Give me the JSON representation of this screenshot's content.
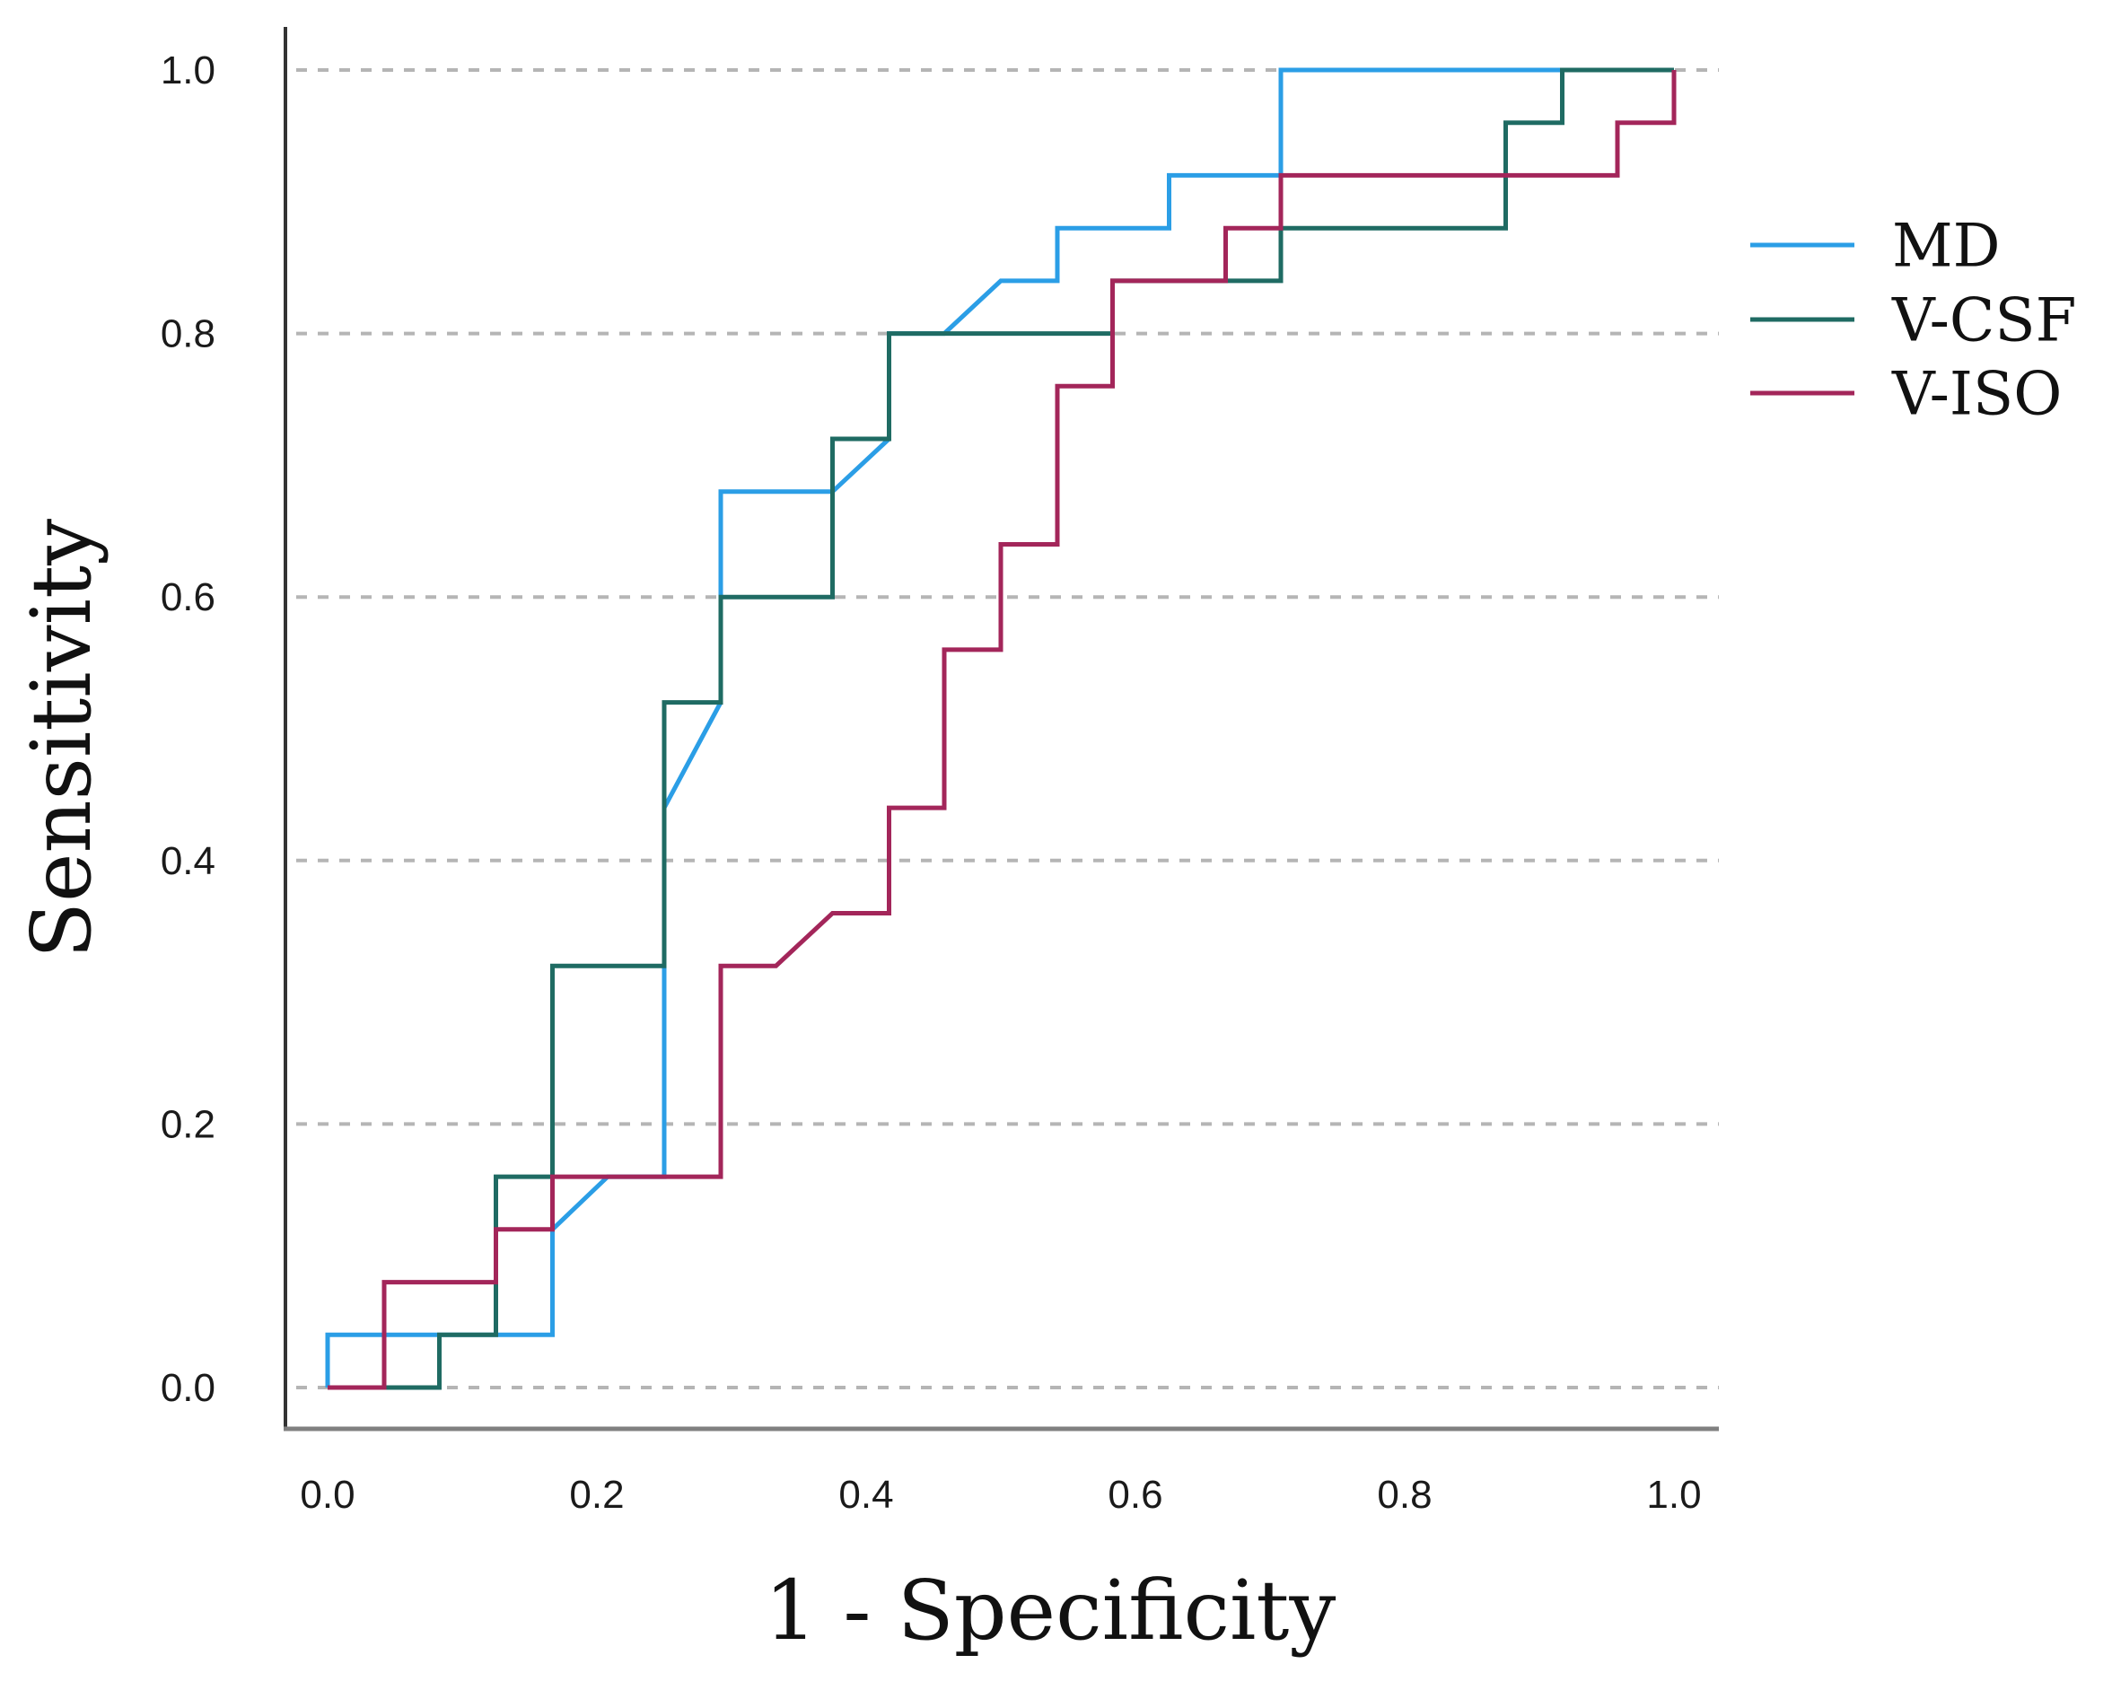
{
  "chart_data": {
    "type": "line",
    "title": "",
    "xlabel": "1 - Specificity",
    "ylabel": "Sensitivity",
    "xlim": [
      0,
      1
    ],
    "ylim": [
      0,
      1
    ],
    "xticks": [
      "0.0",
      "0.2",
      "0.4",
      "0.6",
      "0.8",
      "1.0"
    ],
    "yticks": [
      "0.0",
      "0.2",
      "0.4",
      "0.6",
      "0.8",
      "1.0"
    ],
    "grid": "horizontal dashed",
    "legend_position": "right",
    "series": [
      {
        "name": "MD",
        "color": "#2b9ee6",
        "points": [
          [
            0,
            0
          ],
          [
            0,
            0.04
          ],
          [
            0.167,
            0.04
          ],
          [
            0.167,
            0.12
          ],
          [
            0.208,
            0.16
          ],
          [
            0.25,
            0.16
          ],
          [
            0.25,
            0.44
          ],
          [
            0.292,
            0.52
          ],
          [
            0.292,
            0.68
          ],
          [
            0.375,
            0.68
          ],
          [
            0.417,
            0.72
          ],
          [
            0.417,
            0.8
          ],
          [
            0.458,
            0.8
          ],
          [
            0.5,
            0.84
          ],
          [
            0.542,
            0.84
          ],
          [
            0.542,
            0.88
          ],
          [
            0.625,
            0.88
          ],
          [
            0.625,
            0.92
          ],
          [
            0.708,
            0.92
          ],
          [
            0.708,
            1.0
          ],
          [
            1.0,
            1.0
          ]
        ]
      },
      {
        "name": "V-CSF",
        "color": "#1f6b63",
        "points": [
          [
            0,
            0
          ],
          [
            0.083,
            0
          ],
          [
            0.083,
            0.04
          ],
          [
            0.125,
            0.04
          ],
          [
            0.125,
            0.16
          ],
          [
            0.167,
            0.16
          ],
          [
            0.167,
            0.32
          ],
          [
            0.25,
            0.32
          ],
          [
            0.25,
            0.52
          ],
          [
            0.292,
            0.52
          ],
          [
            0.292,
            0.6
          ],
          [
            0.375,
            0.6
          ],
          [
            0.375,
            0.72
          ],
          [
            0.417,
            0.72
          ],
          [
            0.417,
            0.8
          ],
          [
            0.583,
            0.8
          ],
          [
            0.583,
            0.84
          ],
          [
            0.708,
            0.84
          ],
          [
            0.708,
            0.88
          ],
          [
            0.875,
            0.88
          ],
          [
            0.875,
            0.96
          ],
          [
            0.917,
            0.96
          ],
          [
            0.917,
            1.0
          ],
          [
            1.0,
            1.0
          ]
        ]
      },
      {
        "name": "V-ISO",
        "color": "#a3265a",
        "points": [
          [
            0,
            0
          ],
          [
            0.042,
            0
          ],
          [
            0.042,
            0.08
          ],
          [
            0.125,
            0.08
          ],
          [
            0.125,
            0.12
          ],
          [
            0.167,
            0.12
          ],
          [
            0.167,
            0.16
          ],
          [
            0.292,
            0.16
          ],
          [
            0.292,
            0.32
          ],
          [
            0.333,
            0.32
          ],
          [
            0.375,
            0.36
          ],
          [
            0.417,
            0.36
          ],
          [
            0.417,
            0.44
          ],
          [
            0.458,
            0.44
          ],
          [
            0.458,
            0.56
          ],
          [
            0.5,
            0.56
          ],
          [
            0.5,
            0.64
          ],
          [
            0.542,
            0.64
          ],
          [
            0.542,
            0.76
          ],
          [
            0.583,
            0.76
          ],
          [
            0.583,
            0.84
          ],
          [
            0.667,
            0.84
          ],
          [
            0.667,
            0.88
          ],
          [
            0.708,
            0.88
          ],
          [
            0.708,
            0.92
          ],
          [
            0.958,
            0.92
          ],
          [
            0.958,
            0.96
          ],
          [
            1.0,
            0.96
          ],
          [
            1.0,
            1.0
          ]
        ]
      }
    ]
  }
}
